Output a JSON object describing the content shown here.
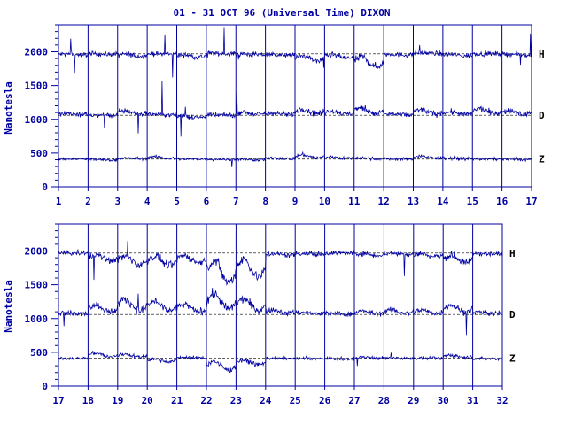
{
  "chart_data": {
    "type": "line",
    "title": "01 - 31 OCT 96 (Universal Time) DIXON",
    "ylabel": "Nanotesla",
    "color": "#0000a0",
    "grid": true,
    "y_ticks": [
      "0",
      "500",
      "1000",
      "1500",
      "2000"
    ],
    "ylim": [
      0,
      2400
    ],
    "components": [
      "H",
      "D",
      "Z"
    ],
    "baselines": {
      "H": 1970,
      "D": 1060,
      "Z": 410
    },
    "panels": [
      {
        "x_ticks": [
          "1",
          "2",
          "3",
          "4",
          "5",
          "6",
          "7",
          "8",
          "9",
          "10",
          "11",
          "12",
          "13",
          "14",
          "15",
          "16",
          "17"
        ],
        "xlim": [
          1,
          17
        ],
        "series": [
          {
            "name": "H",
            "values": [
              1960,
              1965,
              1950,
              1970,
              1940,
              1975,
              1960,
              1955,
              1900,
              1930,
              1850,
              1960,
              1980,
              1950,
              1970,
              1960
            ]
          },
          {
            "name": "D",
            "values": [
              1080,
              1060,
              1100,
              1070,
              1040,
              1060,
              1090,
              1080,
              1120,
              1100,
              1130,
              1070,
              1110,
              1090,
              1120,
              1100
            ]
          },
          {
            "name": "Z",
            "values": [
              410,
              400,
              420,
              430,
              410,
              405,
              400,
              420,
              450,
              430,
              420,
              410,
              440,
              420,
              410,
              405
            ]
          }
        ]
      },
      {
        "x_ticks": [
          "17",
          "18",
          "19",
          "20",
          "21",
          "22",
          "23",
          "24",
          "25",
          "26",
          "27",
          "28",
          "29",
          "30",
          "31",
          "32"
        ],
        "xlim": [
          17,
          32
        ],
        "series": [
          {
            "name": "H",
            "values": [
              1970,
              1900,
              1860,
              1850,
              1880,
              1700,
              1750,
              1950,
              1960,
              1970,
              1950,
              1960,
              1940,
              1880,
              1960
            ]
          },
          {
            "name": "D",
            "values": [
              1080,
              1150,
              1200,
              1180,
              1150,
              1250,
              1200,
              1100,
              1080,
              1070,
              1090,
              1100,
              1100,
              1150,
              1080
            ]
          },
          {
            "name": "Z",
            "values": [
              410,
              460,
              450,
              380,
              420,
              300,
              350,
              410,
              405,
              400,
              420,
              415,
              410,
              440,
              405
            ]
          }
        ]
      }
    ]
  }
}
